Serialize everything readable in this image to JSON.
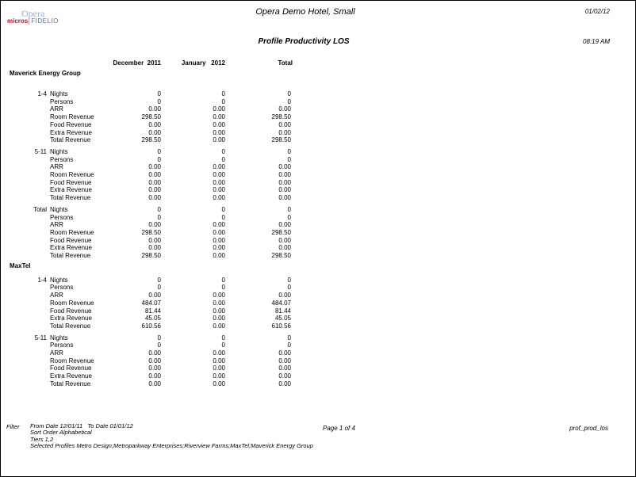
{
  "header": {
    "logo_top": "Opera",
    "logo_micros": "micros",
    "logo_fidelio": "FIDELIO",
    "hotel": "Opera Demo Hotel, Small",
    "date": "01/02/12",
    "title": "Profile Productivity LOS",
    "time": "08:19 AM"
  },
  "columns": [
    "December  2011",
    "January   2012",
    "Total"
  ],
  "profiles": [
    {
      "name": "Maverick Energy Group",
      "groups": [
        {
          "label": "1-4",
          "rows": [
            [
              "Nights",
              "0",
              "0",
              "0"
            ],
            [
              "Persons",
              "0",
              "0",
              "0"
            ],
            [
              "ARR",
              "0.00",
              "0.00",
              "0.00"
            ],
            [
              "Room Revenue",
              "298.50",
              "0.00",
              "298.50"
            ],
            [
              "Food Revenue",
              "0.00",
              "0.00",
              "0.00"
            ],
            [
              "Extra Revenue",
              "0.00",
              "0.00",
              "0.00"
            ],
            [
              "Total Revenue",
              "298.50",
              "0.00",
              "298.50"
            ]
          ]
        },
        {
          "label": "5-11",
          "rows": [
            [
              "Nights",
              "0",
              "0",
              "0"
            ],
            [
              "Persons",
              "0",
              "0",
              "0"
            ],
            [
              "ARR",
              "0.00",
              "0.00",
              "0.00"
            ],
            [
              "Room Revenue",
              "0.00",
              "0.00",
              "0.00"
            ],
            [
              "Food Revenue",
              "0.00",
              "0.00",
              "0.00"
            ],
            [
              "Extra Revenue",
              "0.00",
              "0.00",
              "0.00"
            ],
            [
              "Total Revenue",
              "0.00",
              "0.00",
              "0.00"
            ]
          ]
        },
        {
          "label": "Total",
          "rows": [
            [
              "Nights",
              "0",
              "0",
              "0"
            ],
            [
              "Persons",
              "0",
              "0",
              "0"
            ],
            [
              "ARR",
              "0.00",
              "0.00",
              "0.00"
            ],
            [
              "Room Revenue",
              "298.50",
              "0.00",
              "298.50"
            ],
            [
              "Food Revenue",
              "0.00",
              "0.00",
              "0.00"
            ],
            [
              "Extra Revenue",
              "0.00",
              "0.00",
              "0.00"
            ],
            [
              "Total Revenue",
              "298.50",
              "0.00",
              "298.50"
            ]
          ]
        }
      ]
    },
    {
      "name": "MaxTel",
      "groups": [
        {
          "label": "1-4",
          "rows": [
            [
              "Nights",
              "0",
              "0",
              "0"
            ],
            [
              "Persons",
              "0",
              "0",
              "0"
            ],
            [
              "ARR",
              "0.00",
              "0.00",
              "0.00"
            ],
            [
              "Room Revenue",
              "484.07",
              "0.00",
              "484.07"
            ],
            [
              "Food Revenue",
              "81.44",
              "0.00",
              "81.44"
            ],
            [
              "Extra Revenue",
              "45.05",
              "0.00",
              "45.05"
            ],
            [
              "Total Revenue",
              "610.56",
              "0.00",
              "610.56"
            ]
          ]
        },
        {
          "label": "5-11",
          "rows": [
            [
              "Nights",
              "0",
              "0",
              "0"
            ],
            [
              "Persons",
              "0",
              "0",
              "0"
            ],
            [
              "ARR",
              "0.00",
              "0.00",
              "0.00"
            ],
            [
              "Room Revenue",
              "0.00",
              "0.00",
              "0.00"
            ],
            [
              "Food Revenue",
              "0.00",
              "0.00",
              "0.00"
            ],
            [
              "Extra Revenue",
              "0.00",
              "0.00",
              "0.00"
            ],
            [
              "Total Revenue",
              "0.00",
              "0.00",
              "0.00"
            ]
          ]
        }
      ]
    }
  ],
  "footer": {
    "filter_label": "Filter",
    "lines": [
      "From Date 12/01/11   To Date 01/01/12",
      "Sort Order Alphabetical",
      "Tiers 1,2",
      "Selected Profiles Metro Design;Metroparkway Enterprises;Riverview Farms;MaxTel;Maverick Energy Group"
    ],
    "page": "Page 1 of 4",
    "report_id": "prof_prod_los"
  }
}
